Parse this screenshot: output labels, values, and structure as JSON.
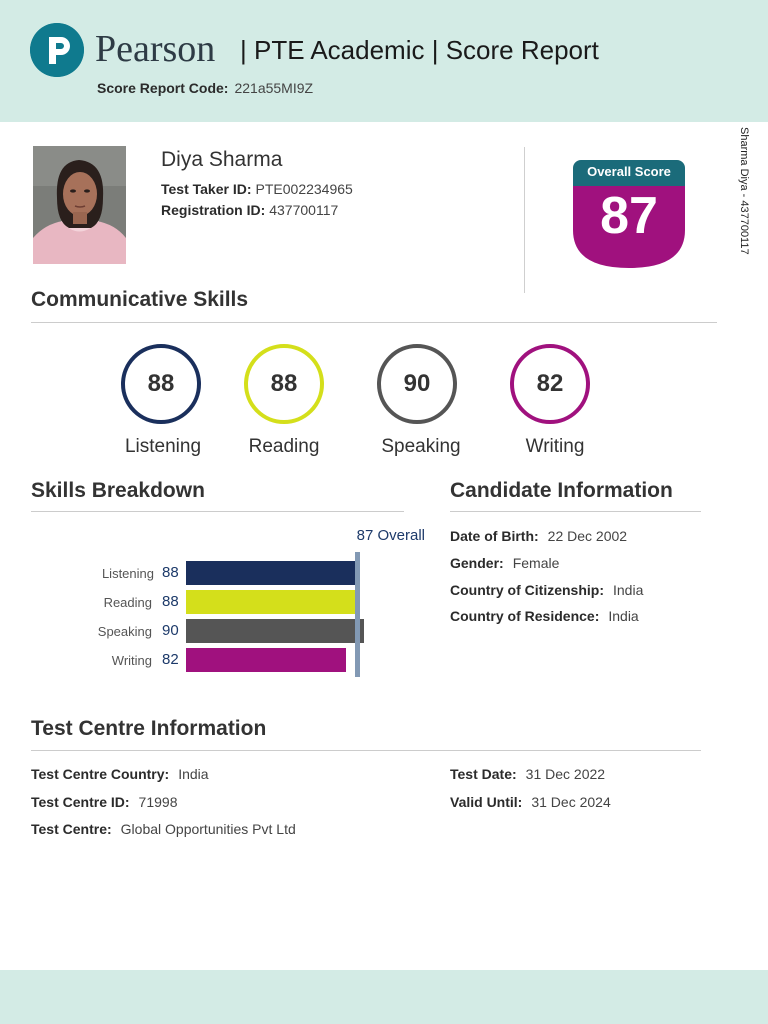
{
  "header": {
    "brand": "Pearson",
    "title": "| PTE Academic | Score Report",
    "score_report_code_label": "Score Report Code:",
    "score_report_code": "221a55MI9Z"
  },
  "candidate": {
    "name": "Diya Sharma",
    "test_taker_id_label": "Test Taker ID:",
    "test_taker_id": "PTE002234965",
    "registration_id_label": "Registration ID:",
    "registration_id": "437700117",
    "side_text": "Sharma Diya - 437700117"
  },
  "overall": {
    "label": "Overall Score",
    "score": "87",
    "color": "#a0117e",
    "label_color": "#1b6b7a"
  },
  "communicative_skills": {
    "title": "Communicative Skills",
    "skills": [
      {
        "name": "Listening",
        "score": "88",
        "color": "#1a2f5c"
      },
      {
        "name": "Reading",
        "score": "88",
        "color": "#d4df1b"
      },
      {
        "name": "Speaking",
        "score": "90",
        "color": "#555555"
      },
      {
        "name": "Writing",
        "score": "82",
        "color": "#a0117e"
      }
    ]
  },
  "skills_breakdown": {
    "title": "Skills Breakdown",
    "overall_label": "87 Overall"
  },
  "chart_data": {
    "type": "bar",
    "orientation": "horizontal",
    "title": "Skills Breakdown",
    "categories": [
      "Listening",
      "Reading",
      "Speaking",
      "Writing"
    ],
    "values": [
      88,
      88,
      90,
      82
    ],
    "colors": [
      "#1a2f5c",
      "#d4df1b",
      "#555555",
      "#a0117e"
    ],
    "overall_marker": 87,
    "xlim": [
      10,
      90
    ]
  },
  "candidate_information": {
    "title": "Candidate Information",
    "rows": [
      {
        "label": "Date of Birth:",
        "value": "22 Dec 2002"
      },
      {
        "label": "Gender:",
        "value": "Female"
      },
      {
        "label": "Country of Citizenship:",
        "value": "India"
      },
      {
        "label": "Country of Residence:",
        "value": "India"
      }
    ]
  },
  "test_centre_information": {
    "title": "Test Centre Information",
    "left_rows": [
      {
        "label": "Test Centre Country:",
        "value": "India"
      },
      {
        "label": "Test Centre ID:",
        "value": "71998"
      },
      {
        "label": "Test Centre:",
        "value": "Global Opportunities Pvt Ltd"
      }
    ],
    "right_rows": [
      {
        "label": "Test Date:",
        "value": "31 Dec 2022"
      },
      {
        "label": "Valid Until:",
        "value": "31 Dec 2024"
      }
    ]
  }
}
